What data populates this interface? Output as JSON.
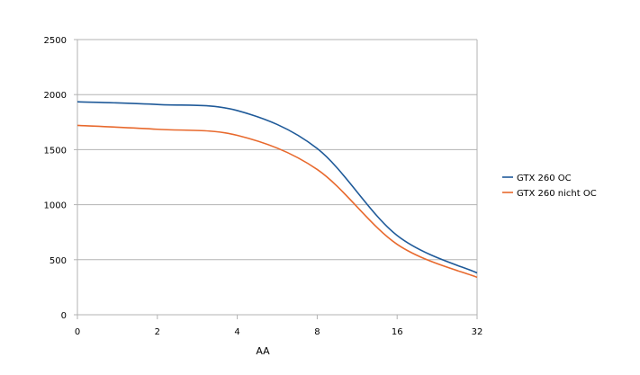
{
  "chart_data": {
    "type": "line",
    "title": "",
    "xlabel": "AA",
    "ylabel": "",
    "categories": [
      "0",
      "2",
      "4",
      "8",
      "16",
      "32"
    ],
    "x_positions_note": "",
    "ylim": [
      0,
      2500
    ],
    "yticks": [
      0,
      500,
      1000,
      1500,
      2000,
      2500
    ],
    "grid": "horizontal",
    "legend_position": "right",
    "series": [
      {
        "name": "GTX 260 OC",
        "color": "#1f5a99",
        "values": [
          1935,
          1910,
          1855,
          1510,
          720,
          380
        ]
      },
      {
        "name": "GTX 260 nicht OC",
        "color": "#e8692d",
        "values": [
          1720,
          1685,
          1630,
          1320,
          640,
          340
        ]
      }
    ]
  }
}
